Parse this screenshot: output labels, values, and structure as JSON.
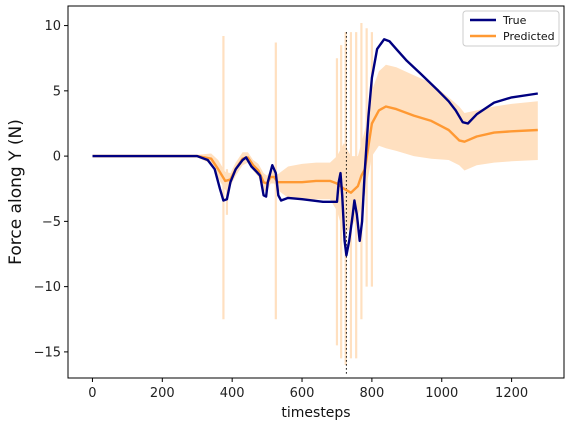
{
  "chart_data": {
    "type": "line",
    "xlabel": "timesteps",
    "ylabel": "Force along Y (N)",
    "xlim": [
      -70,
      1350
    ],
    "ylim": [
      -17,
      11.5
    ],
    "xticks": [
      0,
      200,
      400,
      600,
      800,
      1000,
      1200
    ],
    "yticks": [
      10,
      5,
      0,
      -5,
      -10,
      -15
    ],
    "grid": false,
    "legend": "top-right",
    "vline": {
      "x": 727,
      "style": "dotted",
      "color": "#000000"
    },
    "series": [
      {
        "name": "True",
        "color": "#000080",
        "points": [
          [
            0,
            0
          ],
          [
            300,
            0
          ],
          [
            330,
            -0.3
          ],
          [
            350,
            -1
          ],
          [
            365,
            -2.5
          ],
          [
            375,
            -3.4
          ],
          [
            385,
            -3.3
          ],
          [
            395,
            -2
          ],
          [
            410,
            -1
          ],
          [
            430,
            -0.3
          ],
          [
            440,
            -0.1
          ],
          [
            455,
            -0.8
          ],
          [
            470,
            -1.2
          ],
          [
            480,
            -1.5
          ],
          [
            490,
            -3
          ],
          [
            497,
            -3.1
          ],
          [
            502,
            -2
          ],
          [
            515,
            -0.7
          ],
          [
            525,
            -1.3
          ],
          [
            532,
            -3
          ],
          [
            540,
            -3.4
          ],
          [
            560,
            -3.2
          ],
          [
            600,
            -3.3
          ],
          [
            660,
            -3.5
          ],
          [
            700,
            -3.5
          ],
          [
            705,
            -2
          ],
          [
            710,
            -1.3
          ],
          [
            715,
            -3
          ],
          [
            722,
            -6.5
          ],
          [
            727,
            -7.6
          ],
          [
            735,
            -6.5
          ],
          [
            745,
            -4.5
          ],
          [
            750,
            -3.4
          ],
          [
            757,
            -4.5
          ],
          [
            765,
            -6.5
          ],
          [
            772,
            -5
          ],
          [
            780,
            -1
          ],
          [
            790,
            3
          ],
          [
            800,
            6
          ],
          [
            815,
            8.2
          ],
          [
            835,
            8.95
          ],
          [
            850,
            8.8
          ],
          [
            870,
            8.2
          ],
          [
            900,
            7.3
          ],
          [
            940,
            6.3
          ],
          [
            990,
            5
          ],
          [
            1020,
            4.2
          ],
          [
            1040,
            3.5
          ],
          [
            1060,
            2.6
          ],
          [
            1075,
            2.5
          ],
          [
            1100,
            3.2
          ],
          [
            1150,
            4.1
          ],
          [
            1200,
            4.5
          ],
          [
            1275,
            4.8
          ]
        ]
      },
      {
        "name": "Predicted",
        "color": "#ff9933",
        "points": [
          [
            0,
            0
          ],
          [
            300,
            0
          ],
          [
            340,
            -0.2
          ],
          [
            360,
            -1
          ],
          [
            380,
            -1.9
          ],
          [
            395,
            -1.8
          ],
          [
            410,
            -1
          ],
          [
            430,
            -0.2
          ],
          [
            445,
            -0.1
          ],
          [
            460,
            -0.7
          ],
          [
            475,
            -1.1
          ],
          [
            490,
            -2
          ],
          [
            500,
            -2.1
          ],
          [
            510,
            -1.6
          ],
          [
            520,
            -1.6
          ],
          [
            530,
            -2
          ],
          [
            600,
            -2
          ],
          [
            640,
            -1.9
          ],
          [
            680,
            -1.9
          ],
          [
            700,
            -2.1
          ],
          [
            720,
            -2.5
          ],
          [
            740,
            -2.8
          ],
          [
            760,
            -2.3
          ],
          [
            770,
            -1.5
          ],
          [
            780,
            -1
          ],
          [
            800,
            2.5
          ],
          [
            820,
            3.5
          ],
          [
            840,
            3.8
          ],
          [
            870,
            3.6
          ],
          [
            920,
            3.1
          ],
          [
            970,
            2.7
          ],
          [
            1020,
            2
          ],
          [
            1050,
            1.2
          ],
          [
            1065,
            1.1
          ],
          [
            1100,
            1.5
          ],
          [
            1150,
            1.8
          ],
          [
            1200,
            1.9
          ],
          [
            1275,
            2
          ]
        ]
      }
    ],
    "uncertainty_band": {
      "series": "Predicted",
      "color": "#ffe0c0",
      "upper": [
        [
          0,
          0.1
        ],
        [
          300,
          0.1
        ],
        [
          340,
          0.2
        ],
        [
          360,
          -0.3
        ],
        [
          380,
          -1.2
        ],
        [
          395,
          -1.3
        ],
        [
          410,
          -0.5
        ],
        [
          430,
          0.3
        ],
        [
          445,
          0.3
        ],
        [
          460,
          -0.3
        ],
        [
          475,
          -0.6
        ],
        [
          490,
          -1.3
        ],
        [
          500,
          -1.5
        ],
        [
          510,
          -1.1
        ],
        [
          520,
          -1.1
        ],
        [
          530,
          -1.4
        ],
        [
          560,
          -0.8
        ],
        [
          600,
          -0.6
        ],
        [
          640,
          -0.5
        ],
        [
          680,
          -0.5
        ],
        [
          700,
          0
        ],
        [
          720,
          1
        ],
        [
          740,
          0
        ],
        [
          760,
          0
        ],
        [
          780,
          2
        ],
        [
          800,
          5
        ],
        [
          820,
          6.5
        ],
        [
          840,
          7
        ],
        [
          870,
          6.8
        ],
        [
          920,
          6.2
        ],
        [
          970,
          5.6
        ],
        [
          1020,
          4.5
        ],
        [
          1050,
          3.8
        ],
        [
          1065,
          3.3
        ],
        [
          1100,
          3.5
        ],
        [
          1150,
          3.8
        ],
        [
          1200,
          4.0
        ],
        [
          1275,
          4.2
        ]
      ],
      "lower": [
        [
          0,
          -0.1
        ],
        [
          300,
          -0.1
        ],
        [
          340,
          -0.6
        ],
        [
          360,
          -1.7
        ],
        [
          380,
          -2.6
        ],
        [
          395,
          -2.3
        ],
        [
          410,
          -1.5
        ],
        [
          430,
          -0.7
        ],
        [
          445,
          -0.5
        ],
        [
          460,
          -1.1
        ],
        [
          475,
          -1.6
        ],
        [
          490,
          -2.7
        ],
        [
          500,
          -2.7
        ],
        [
          510,
          -2.1
        ],
        [
          520,
          -2.1
        ],
        [
          530,
          -2.6
        ],
        [
          560,
          -3.2
        ],
        [
          600,
          -3.4
        ],
        [
          640,
          -3.3
        ],
        [
          680,
          -3.3
        ],
        [
          700,
          -4.2
        ],
        [
          720,
          -6
        ],
        [
          740,
          -5.5
        ],
        [
          760,
          -4.6
        ],
        [
          780,
          -3
        ],
        [
          800,
          0
        ],
        [
          820,
          0.8
        ],
        [
          840,
          0.6
        ],
        [
          870,
          0.4
        ],
        [
          920,
          0
        ],
        [
          970,
          -0.2
        ],
        [
          1020,
          -0.3
        ],
        [
          1050,
          -0.7
        ],
        [
          1065,
          -1.1
        ],
        [
          1100,
          -0.7
        ],
        [
          1150,
          -0.5
        ],
        [
          1200,
          -0.4
        ],
        [
          1275,
          -0.3
        ]
      ],
      "spikes": [
        [
          375,
          9.2,
          -12.5
        ],
        [
          385,
          -1,
          -4.5
        ],
        [
          525,
          8.7,
          -12.5
        ],
        [
          700,
          7.5,
          -14.5
        ],
        [
          712,
          8.5,
          -15.5
        ],
        [
          725,
          9.5,
          -16
        ],
        [
          740,
          9.5,
          -15.5
        ],
        [
          755,
          9.5,
          -15.5
        ],
        [
          770,
          10.2,
          -12.5
        ],
        [
          785,
          9.8,
          -10
        ],
        [
          800,
          9.5,
          -10
        ]
      ]
    }
  }
}
